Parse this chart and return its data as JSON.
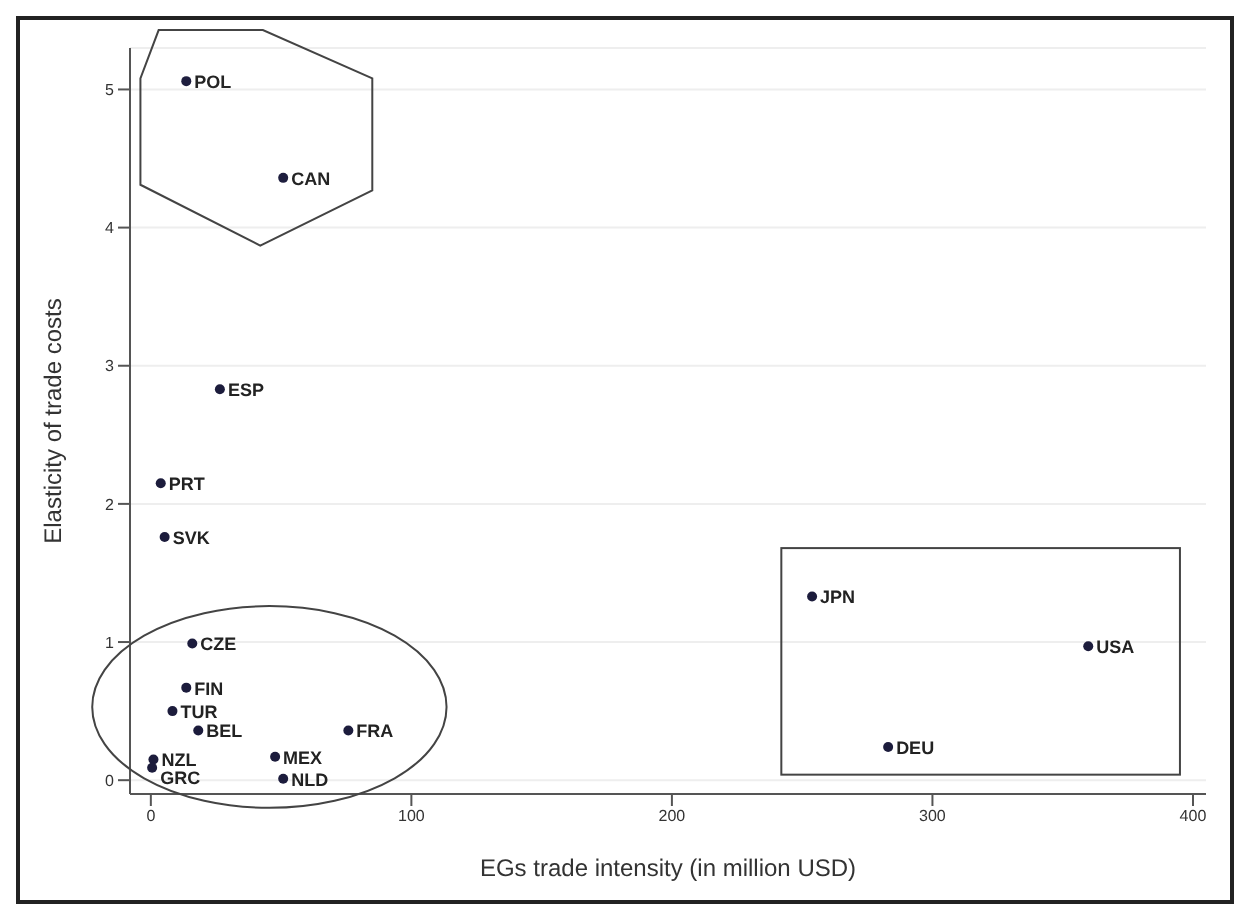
{
  "chart_data": {
    "type": "scatter",
    "xlabel": "EGs trade intensity  (in million USD)",
    "ylabel": "Elasticity of trade costs",
    "x": [
      13.6,
      50.8,
      26.5,
      3.8,
      5.3,
      15.9,
      13.6,
      8.3,
      18.2,
      75.8,
      47.7,
      50.8,
      1.0,
      0.5,
      253.8,
      359.8,
      283
    ],
    "series": [
      {
        "color": "#1c1c3c",
        "values": [
          5.06,
          4.36,
          2.83,
          2.15,
          1.76,
          0.99,
          0.67,
          0.5,
          0.36,
          0.36,
          0.17,
          0.01,
          0.15,
          0.09,
          1.33,
          0.97,
          0.24
        ]
      }
    ],
    "annotations": [
      {
        "text": "POL",
        "x": 13.6,
        "y": 5.06
      },
      {
        "text": "CAN",
        "x": 50.8,
        "y": 4.36
      },
      {
        "text": "ESP",
        "x": 26.5,
        "y": 2.83
      },
      {
        "text": "PRT",
        "x": 3.8,
        "y": 2.15
      },
      {
        "text": "SVK",
        "x": 5.3,
        "y": 1.76
      },
      {
        "text": "CZE",
        "x": 15.9,
        "y": 0.99
      },
      {
        "text": "FIN",
        "x": 13.6,
        "y": 0.67
      },
      {
        "text": "TUR",
        "x": 8.3,
        "y": 0.5
      },
      {
        "text": "BEL",
        "x": 18.2,
        "y": 0.36
      },
      {
        "text": "FRA",
        "x": 75.8,
        "y": 0.36
      },
      {
        "text": "MEX",
        "x": 47.7,
        "y": 0.17
      },
      {
        "text": "NLD",
        "x": 50.8,
        "y": 0.01
      },
      {
        "text": "NZL",
        "x": 1.0,
        "y": 0.15
      },
      {
        "text": "GRC",
        "x": 0.5,
        "y": 0.09
      },
      {
        "text": "JPN",
        "x": 253.8,
        "y": 1.33
      },
      {
        "text": "USA",
        "x": 359.8,
        "y": 0.97
      },
      {
        "text": "DEU",
        "x": 283,
        "y": 0.24
      }
    ],
    "xlim": [
      -8,
      405
    ],
    "xticks": [
      0,
      100,
      200,
      300,
      400
    ],
    "ylim": [
      -0.1,
      5.3
    ],
    "yticks": [
      0,
      1,
      2,
      3,
      4,
      5
    ],
    "grid": "y",
    "marker": "circle",
    "legend": false
  }
}
